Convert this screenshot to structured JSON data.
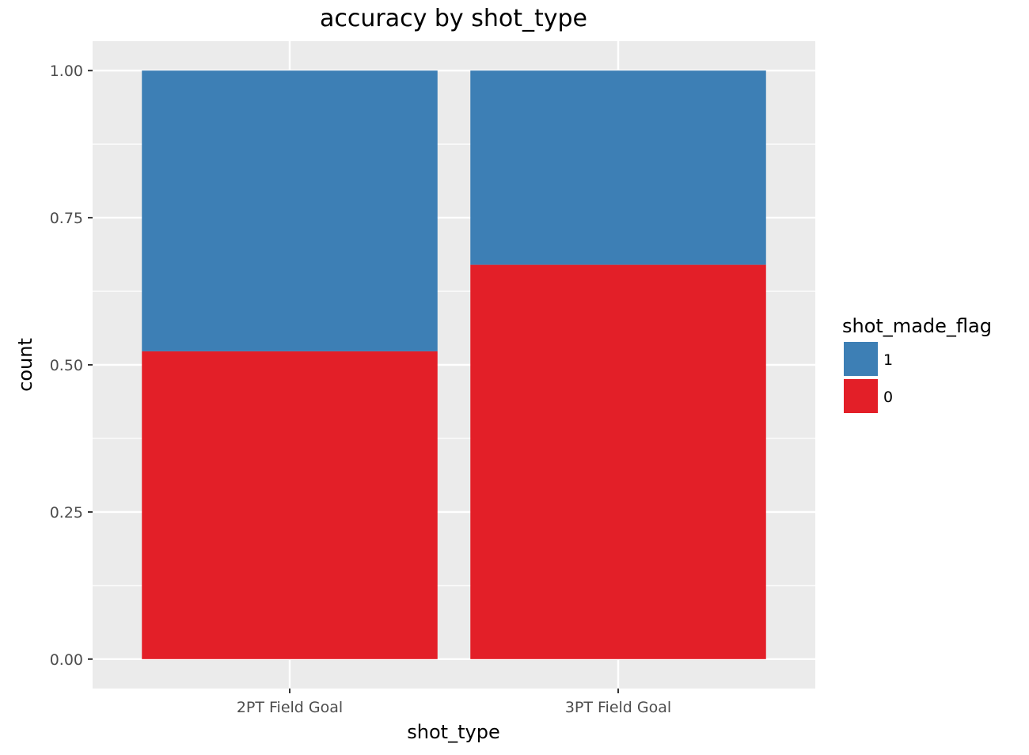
{
  "chart_data": {
    "type": "bar",
    "stacked": true,
    "title": "accuracy by shot_type",
    "xlabel": "shot_type",
    "ylabel": "count",
    "categories": [
      "2PT Field Goal",
      "3PT Field Goal"
    ],
    "series": [
      {
        "name": "1",
        "values": [
          0.477,
          0.33
        ],
        "color": "#3d7fb5"
      },
      {
        "name": "0",
        "values": [
          0.523,
          0.67
        ],
        "color": "#e31f28"
      }
    ],
    "ylim": [
      -0.05,
      1.05
    ],
    "yticks": [
      0.0,
      0.25,
      0.5,
      0.75,
      1.0
    ],
    "ytick_labels": [
      "0.00",
      "0.25",
      "0.50",
      "0.75",
      "1.00"
    ],
    "legend": {
      "title": "shot_made_flag",
      "placement": "right",
      "items": [
        {
          "label": "1",
          "color": "#3d7fb5"
        },
        {
          "label": "0",
          "color": "#e31f28"
        }
      ]
    },
    "panel_background": "#ebebeb",
    "gridline_color": "#ffffff",
    "grid": true
  }
}
